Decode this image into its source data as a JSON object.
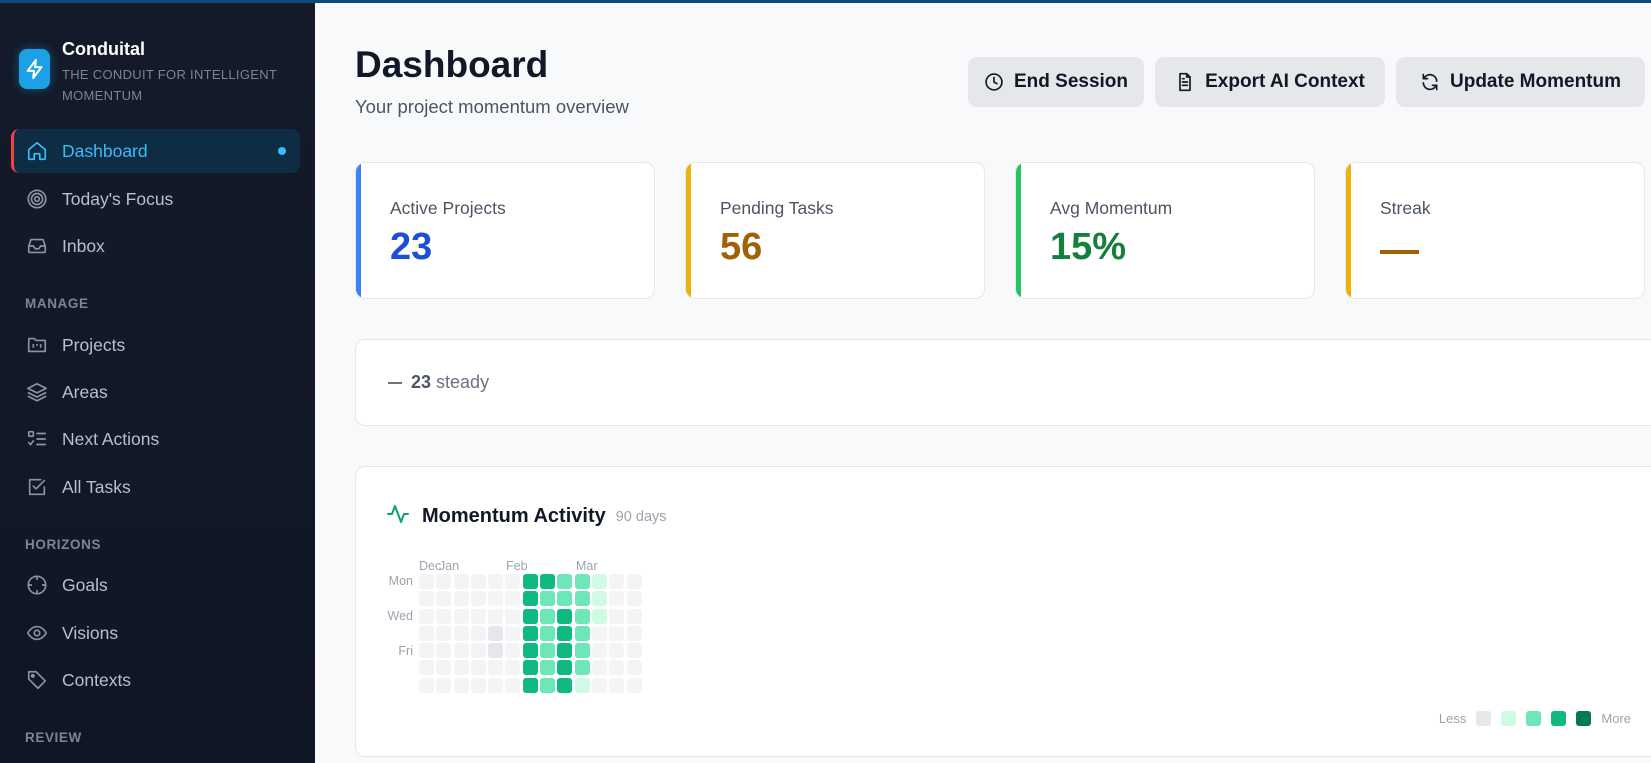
{
  "app": {
    "name": "Conduital",
    "tagline": "THE CONDUIT FOR INTELLIGENT MOMENTUM"
  },
  "sidebar": {
    "items": [
      {
        "label": "Dashboard",
        "icon": "home-icon",
        "active": true
      },
      {
        "label": "Today's Focus",
        "icon": "target-icon"
      },
      {
        "label": "Inbox",
        "icon": "inbox-icon"
      }
    ],
    "sections": [
      {
        "title": "MANAGE",
        "items": [
          {
            "label": "Projects",
            "icon": "folder-kanban-icon"
          },
          {
            "label": "Areas",
            "icon": "layers-icon"
          },
          {
            "label": "Next Actions",
            "icon": "list-checks-icon"
          },
          {
            "label": "All Tasks",
            "icon": "checkbox-icon"
          }
        ]
      },
      {
        "title": "HORIZONS",
        "items": [
          {
            "label": "Goals",
            "icon": "crosshair-icon"
          },
          {
            "label": "Visions",
            "icon": "eye-icon"
          },
          {
            "label": "Contexts",
            "icon": "tag-icon"
          }
        ]
      },
      {
        "title": "REVIEW",
        "items": []
      }
    ]
  },
  "header": {
    "title": "Dashboard",
    "subtitle": "Your project momentum overview",
    "buttons": [
      {
        "label": "End Session",
        "icon": "clock-icon"
      },
      {
        "label": "Export AI Context",
        "icon": "file-text-icon"
      },
      {
        "label": "Update Momentum",
        "icon": "refresh-icon"
      }
    ]
  },
  "stats": [
    {
      "label": "Active Projects",
      "value": "23",
      "accent": "#3b82f6",
      "value_color": "#1d4ed8"
    },
    {
      "label": "Pending Tasks",
      "value": "56",
      "accent": "#eab308",
      "value_color": "#a16207"
    },
    {
      "label": "Avg Momentum",
      "value": "15%",
      "accent": "#22c55e",
      "value_color": "#15803d"
    },
    {
      "label": "Streak",
      "value": "—",
      "accent": "#eab308",
      "value_color": "#a16207"
    }
  ],
  "trend": {
    "count": "23",
    "label": "steady"
  },
  "activity": {
    "title": "Momentum Activity",
    "range": "90 days",
    "month_labels": [
      "Dec",
      "Jan",
      "Feb",
      "Mar"
    ],
    "day_labels": [
      "Mon",
      "Wed",
      "Fri"
    ],
    "legend": {
      "less": "Less",
      "more": "More"
    },
    "level_colors": [
      "#f3f4f6",
      "#d1fae5",
      "#6ee7b7",
      "#10b981",
      "#047857",
      "#e5e7eb"
    ],
    "legend_colors": [
      "#e5e7eb",
      "#d1fae5",
      "#6ee7b7",
      "#10b981",
      "#047857"
    ],
    "grid_rows": [
      [
        0,
        0,
        0,
        0,
        0,
        0,
        3,
        3,
        2,
        2,
        1,
        0,
        0
      ],
      [
        0,
        0,
        0,
        0,
        0,
        0,
        3,
        2,
        2,
        2,
        1,
        0,
        0
      ],
      [
        0,
        0,
        0,
        0,
        0,
        0,
        3,
        2,
        3,
        2,
        1,
        0,
        0
      ],
      [
        0,
        0,
        0,
        0,
        5,
        0,
        3,
        2,
        3,
        2,
        0,
        0,
        0
      ],
      [
        0,
        0,
        0,
        0,
        5,
        0,
        3,
        2,
        3,
        2,
        0,
        0,
        0
      ],
      [
        0,
        0,
        0,
        0,
        0,
        0,
        3,
        2,
        3,
        2,
        0,
        0,
        0
      ],
      [
        0,
        0,
        0,
        0,
        0,
        0,
        3,
        2,
        3,
        1,
        0,
        0,
        0
      ]
    ]
  }
}
